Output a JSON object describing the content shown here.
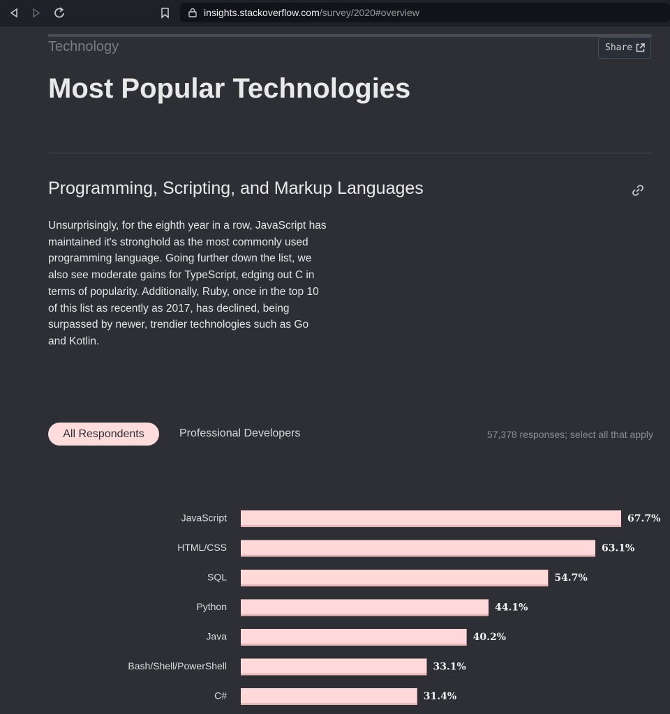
{
  "browser": {
    "url_host": "insights.stackoverflow.com",
    "url_path": "/survey/2020#overview"
  },
  "page": {
    "section": "Technology",
    "share": "Share",
    "title": "Most Popular Technologies",
    "subtitle": "Programming, Scripting, and Markup Languages",
    "description": "Unsurprisingly, for the eighth year in a row, JavaScript has maintained it's stronghold as the most commonly used programming language. Going further down the list, we also see moderate gains for TypeScript, edging out C in terms of popularity. Additionally, Ruby, once in the top 10 of this list as recently as 2017, has declined, being surpassed by newer, trendier technologies such as Go and Kotlin.",
    "tabs": [
      "All Respondents",
      "Professional Developers"
    ],
    "note": "57,378 responses; select all that apply"
  },
  "chart_data": {
    "type": "bar",
    "orientation": "horizontal",
    "categories": [
      "JavaScript",
      "HTML/CSS",
      "SQL",
      "Python",
      "Java",
      "Bash/Shell/PowerShell",
      "C#"
    ],
    "values": [
      67.7,
      63.1,
      54.7,
      44.1,
      40.2,
      33.1,
      31.4
    ],
    "value_labels": [
      "67.7%",
      "63.1%",
      "54.7%",
      "44.1%",
      "40.2%",
      "33.1%",
      "31.4%"
    ],
    "color": "#ffd9d9"
  }
}
